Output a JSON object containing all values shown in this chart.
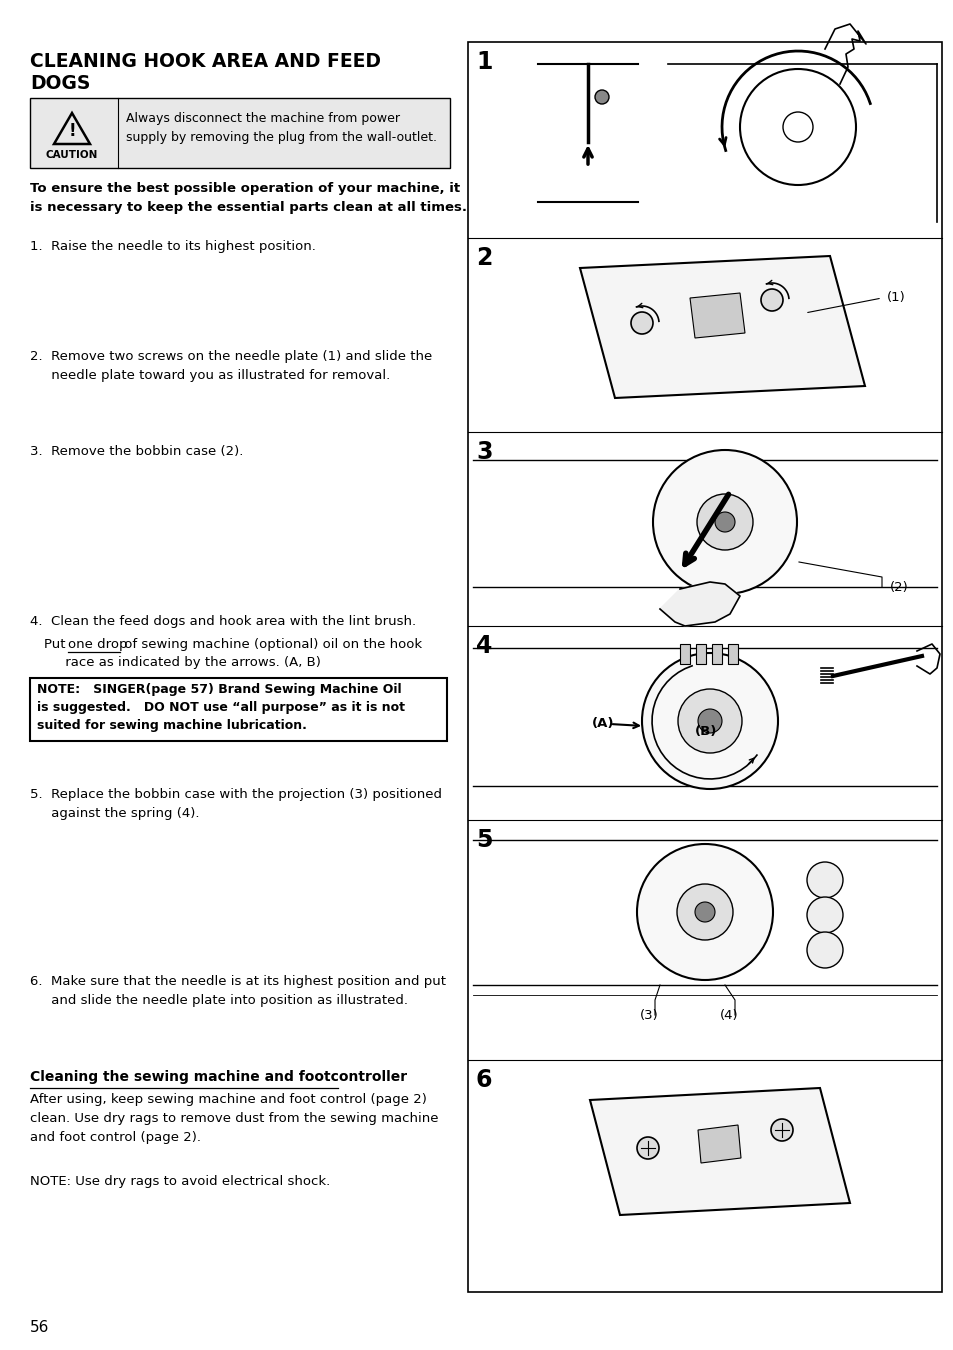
{
  "bg_color": "#ffffff",
  "page_num": "56",
  "title_line1": "CLEANING HOOK AREA AND FEED",
  "title_line2": "DOGS",
  "caution_text_line1": "Always disconnect the machine from power",
  "caution_text_line2": "supply by removing the plug from the wall-outlet.",
  "bold_intro": "To ensure the best possible operation of your machine, it\nis necessary to keep the essential parts clean at all times.",
  "step1": "1.  Raise the needle to its highest position.",
  "step2_line1": "2.  Remove two screws on the needle plate (1) and slide the",
  "step2_line2": "     needle plate toward you as illustrated for removal.",
  "step3": "3.  Remove the bobbin case (2).",
  "step4_line1": "4.  Clean the feed dogs and hook area with the lint brush.",
  "step4_line2a": "Put ",
  "step4_line2b": "one drop",
  "step4_line2c": " of sewing machine (optional) oil on the hook",
  "step4_line3": "     race as indicated by the arrows. (A, B)",
  "note_line1": "NOTE:   SINGER(page 57) Brand Sewing Machine Oil",
  "note_line2": "is suggested.   DO NOT use “all purpose” as it is not",
  "note_line3": "suited for sewing machine lubrication.",
  "step5_line1": "5.  Replace the bobbin case with the projection (3) positioned",
  "step5_line2": "     against the spring (4).",
  "step6_line1": "6.  Make sure that the needle is at its highest position and put",
  "step6_line2": "     and slide the needle plate into position as illustrated.",
  "cleaning_header": "Cleaning the sewing machine and footcontroller",
  "cleaning_body1": "After using, keep sewing machine and foot control (page 2)",
  "cleaning_body2": "clean. Use dry rags to remove dust from the sewing machine",
  "cleaning_body3": "and foot control (page 2).",
  "cleaning_note": "NOTE: Use dry rags to avoid electrical shock.",
  "text_color": "#000000",
  "caution_bg": "#e8e8e8"
}
